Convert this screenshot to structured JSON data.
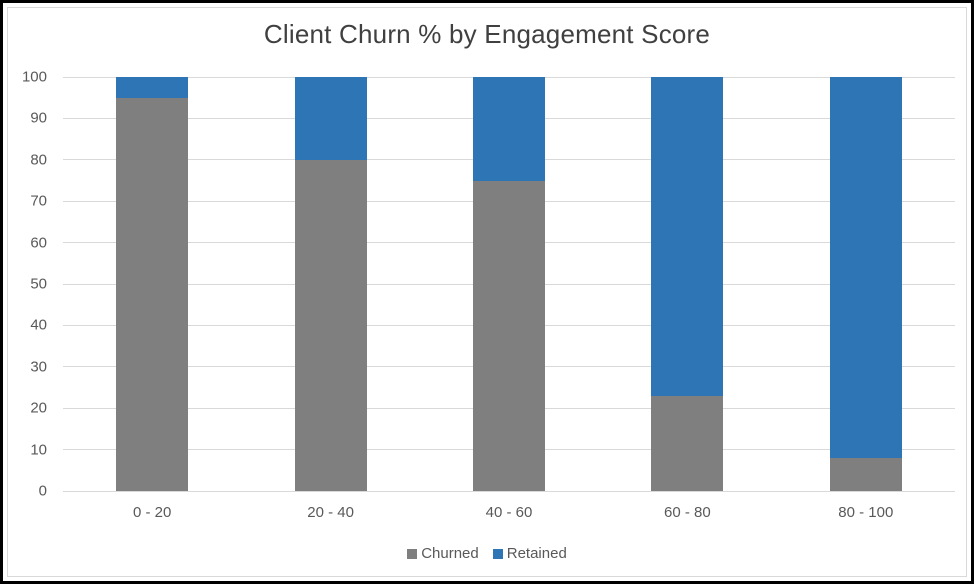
{
  "window": {
    "background": "#FFFFFF",
    "frame_border_color": "#000000",
    "inner_border_color": "#D9D9D9"
  },
  "chart_data": {
    "type": "bar",
    "stacked": true,
    "title": "Client Churn % by Engagement Score",
    "categories": [
      "0 - 20",
      "20 - 40",
      "40 - 60",
      "60 - 80",
      "80 - 100"
    ],
    "series": [
      {
        "name": "Churned",
        "color": "#7F7F7F",
        "values": [
          95,
          80,
          75,
          23,
          8
        ]
      },
      {
        "name": "Retained",
        "color": "#2E75B6",
        "values": [
          5,
          20,
          25,
          77,
          92
        ]
      }
    ],
    "xlabel": "",
    "ylabel": "",
    "ylim": [
      0,
      100
    ],
    "yticks": [
      0,
      10,
      20,
      30,
      40,
      50,
      60,
      70,
      80,
      90,
      100
    ],
    "grid": true,
    "gridline_color": "#D9D9D9",
    "legend_position": "bottom",
    "title_color": "#404040",
    "axis_label_color": "#595959"
  }
}
